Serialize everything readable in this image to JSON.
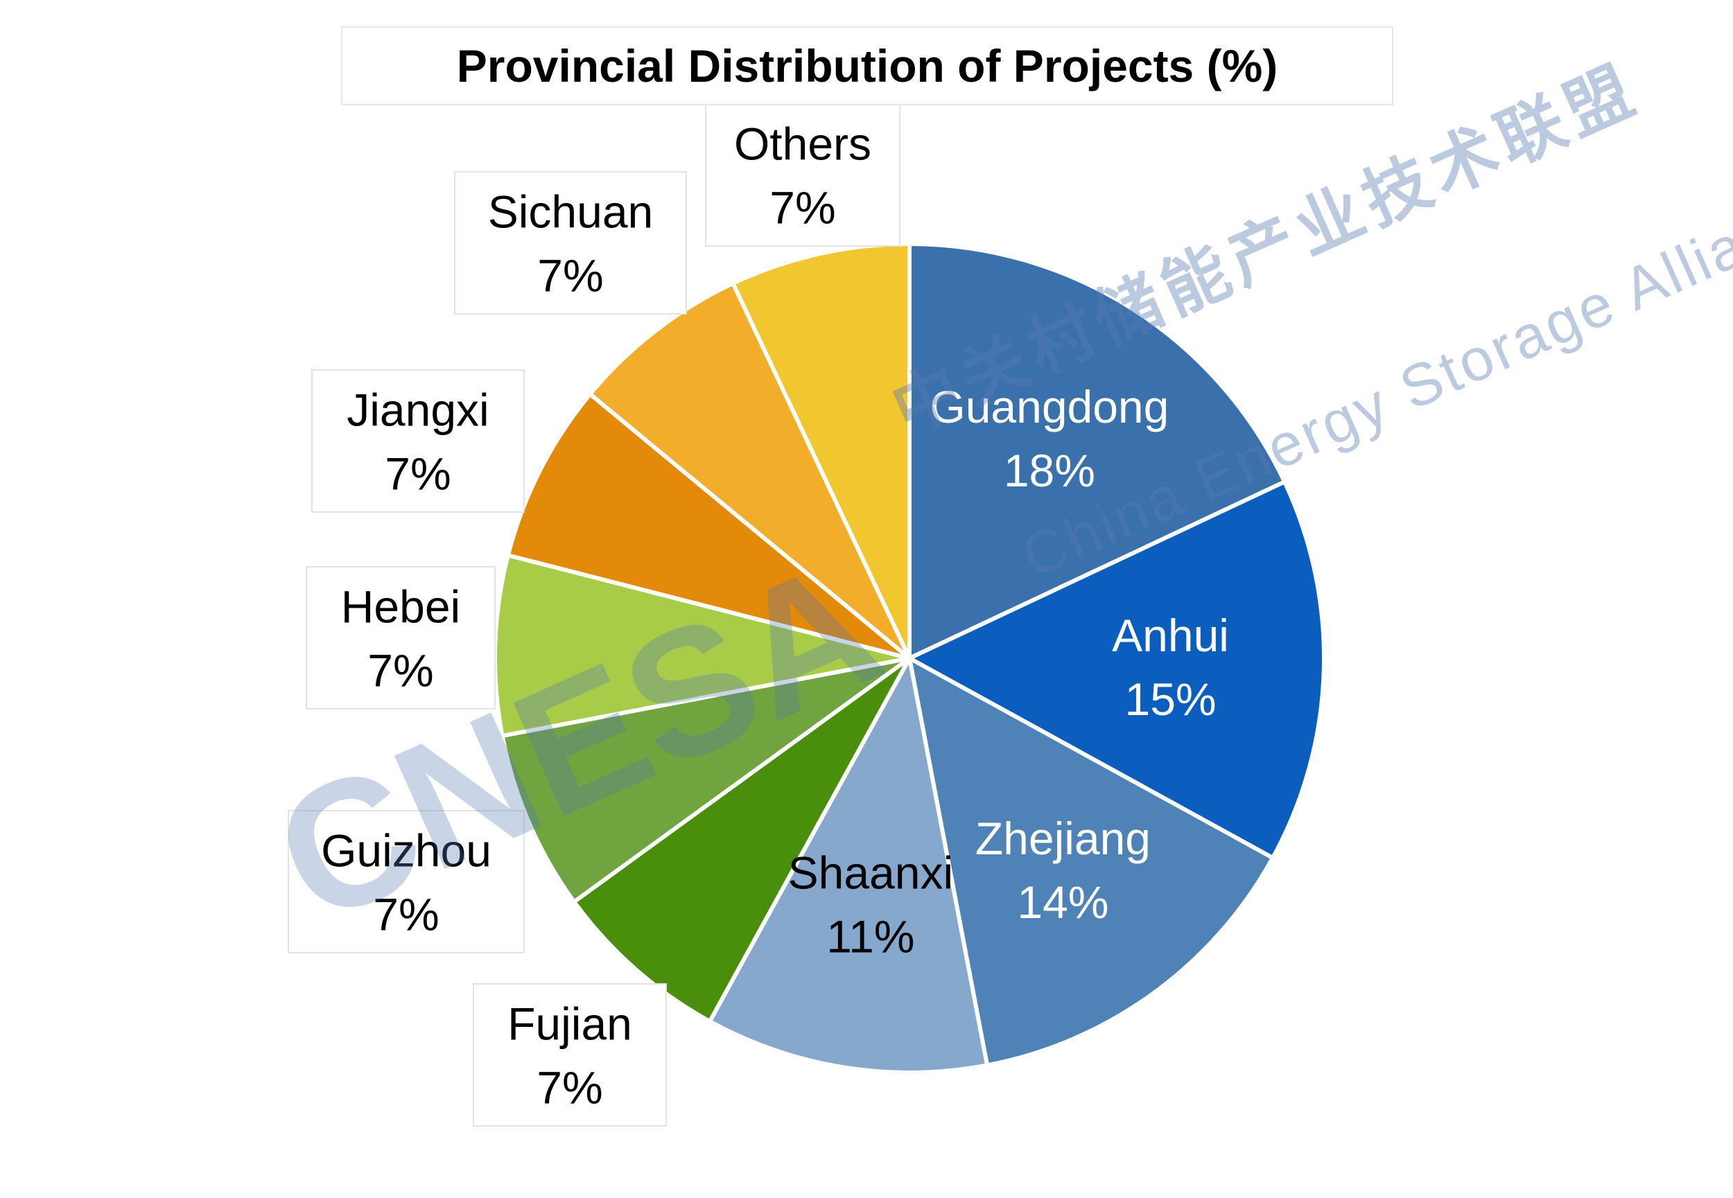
{
  "chart_data": {
    "type": "pie",
    "title": "Provincial Distribution of Projects (%)",
    "categories": [
      "Guangdong",
      "Anhui",
      "Zhejiang",
      "Shaanxi",
      "Fujian",
      "Guizhou",
      "Hebei",
      "Jiangxi",
      "Sichuan",
      "Others"
    ],
    "values": [
      18,
      15,
      14,
      11,
      7,
      7,
      7,
      7,
      7,
      7
    ],
    "value_labels": [
      "18%",
      "15%",
      "14%",
      "11%",
      "7%",
      "7%",
      "7%",
      "7%",
      "7%",
      "7%"
    ],
    "colors": [
      "#3a71ad",
      "#0b5ebd",
      "#4f82b6",
      "#85a8cc",
      "#4a8f0b",
      "#70a43e",
      "#a9cc48",
      "#e48a0a",
      "#f2ae2b",
      "#f2c62f"
    ],
    "label_placement": [
      "inside",
      "inside",
      "inside",
      "inside",
      "outside",
      "outside",
      "outside",
      "outside",
      "outside",
      "outside"
    ],
    "start_angle_deg": 0,
    "direction": "clockwise",
    "legend": "none"
  },
  "watermark": {
    "logo_text": "CNESA",
    "cn_text": "中关村储能产业技术联盟",
    "en_text": "China Energy Storage Alliance",
    "color": "#587ab2"
  }
}
